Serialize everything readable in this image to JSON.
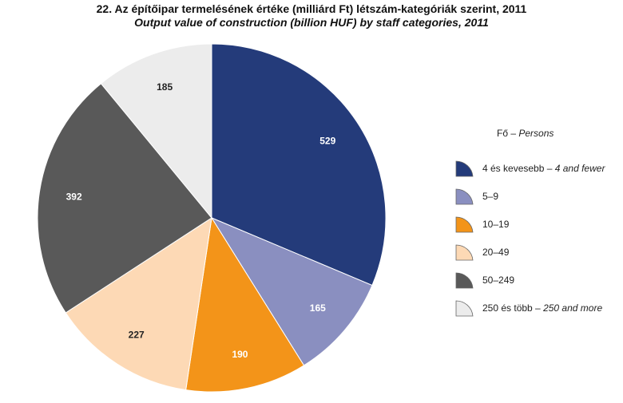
{
  "chart_data": {
    "type": "pie",
    "title": "22. Az építőipar termelésének értéke (milliárd Ft) létszám-kategóriák szerint, 2011",
    "subtitle": "Output value of construction (billion HUF) by staff categories, 2011",
    "legend_title": {
      "hu": "Fő",
      "sep": " – ",
      "en": "Persons"
    },
    "legend_placement": "right",
    "slices": [
      {
        "hu": "4 és kevesebb",
        "en": "4 and fewer",
        "value": 529,
        "color": "#243b7a",
        "label_color": "#ffffff"
      },
      {
        "hu": "5–9",
        "en": "",
        "value": 165,
        "color": "#8a8fc0",
        "label_color": "#ffffff"
      },
      {
        "hu": "10–19",
        "en": "",
        "value": 190,
        "color": "#f39419",
        "label_color": "#ffffff"
      },
      {
        "hu": "20–49",
        "en": "",
        "value": 227,
        "color": "#fdd9b5",
        "label_color": "#222222"
      },
      {
        "hu": "50–249",
        "en": "",
        "value": 392,
        "color": "#595959",
        "label_color": "#ffffff"
      },
      {
        "hu": "250 és több",
        "en": "250 and more",
        "value": 185,
        "color": "#ececec",
        "label_color": "#222222"
      }
    ]
  }
}
